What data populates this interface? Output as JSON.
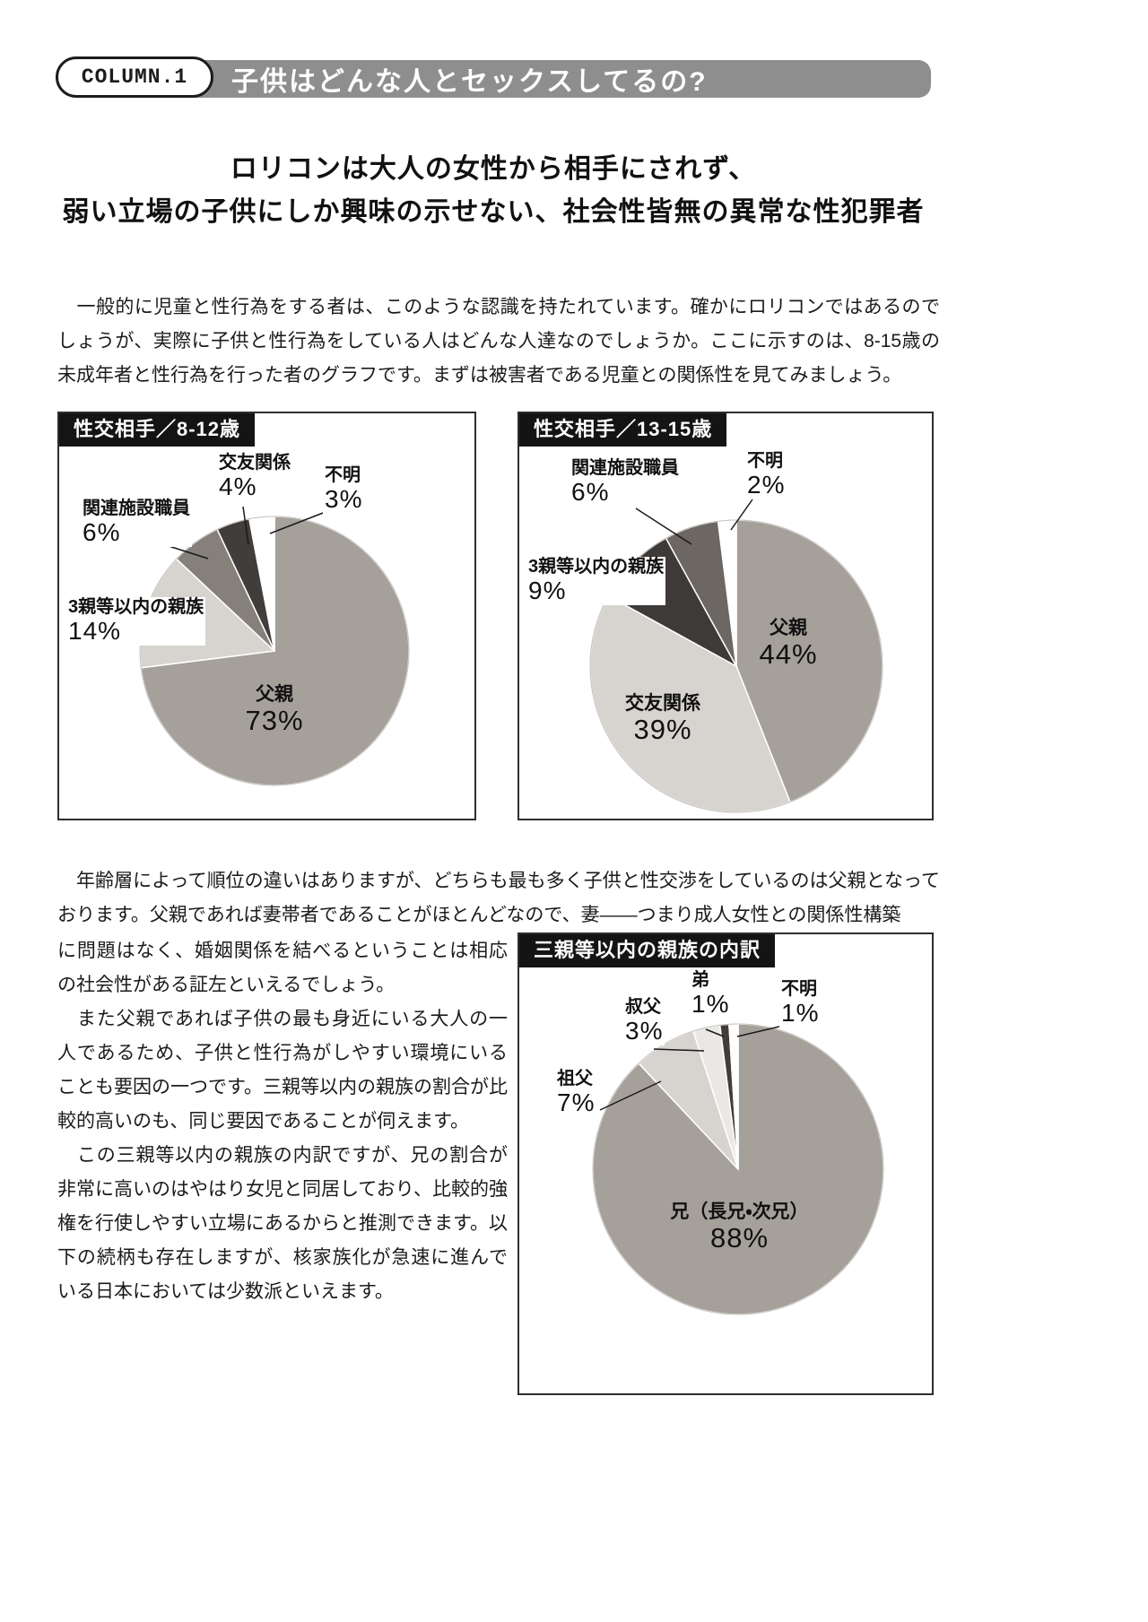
{
  "page": {
    "column_tag": "COLUMN.1",
    "title": "子供はどんな人とセックスしてるの?",
    "lead": {
      "line1": "ロリコンは大人の女性から相手にされず、",
      "line2": "弱い立場の子供にしか興味の示せない、社会性皆無の異常な性犯罪者"
    },
    "paragraphs": {
      "intro": "　一般的に児童と性行為をする者は、このような認識を持たれています。確かにロリコンではあるのでしょうが、実際に子供と性行為をしている人はどんな人達なのでしょうか。ここに示すのは、8-15歳の未成年者と性行為を行った者のグラフです。まずは被害者である児童との関係性を見てみましょう。",
      "analysis_full": "　年齢層によって順位の違いはありますが、どちらも最も多く子供と性交渉をしているのは父親となっております。父親であれば妻帯者であることがほとんどなので、妻——つまり成人女性との関係性構築",
      "analysis_left1": "に問題はなく、婚姻関係を結べるということは相応の社会性がある証左といえるでしょう。",
      "analysis_left2": "　また父親であれば子供の最も身近にいる大人の一人であるため、子供と性行為がしやすい環境にいることも要因の一つです。三親等以内の親族の割合が比較的高いのも、同じ要因であることが伺えます。",
      "analysis_left3": "　この三親等以内の親族の内訳ですが、兄の割合が非常に高いのはやはり女児と同居しており、比較的強権を行使しやすい立場にあるからと推測できます。以下の続柄も存在しますが、核家族化が急速に進んでいる日本においては少数派といえます。"
    }
  },
  "colors": {
    "title_bar": "#8e8e8e",
    "chart_header": "#141414",
    "pie_main": "#a5a09a",
    "pie_light": "#d7d4d0",
    "pie_mid": "#86807b",
    "pie_dark": "#3e3a37",
    "pie_white": "#ffffff"
  },
  "chart_data": [
    {
      "type": "pie",
      "title": "性交相手／8-12歳",
      "slices": [
        {
          "label": "父親",
          "value": 73,
          "display": "73%",
          "color": "#a5a09a"
        },
        {
          "label": "3親等以内の親族",
          "value": 14,
          "display": "14%",
          "color": "#d7d4d0"
        },
        {
          "label": "関連施設職員",
          "value": 6,
          "display": "6%",
          "color": "#86807b"
        },
        {
          "label": "交友関係",
          "value": 4,
          "display": "4%",
          "color": "#413d3a"
        },
        {
          "label": "不明",
          "value": 3,
          "display": "3%",
          "color": "#ffffff"
        }
      ]
    },
    {
      "type": "pie",
      "title": "性交相手／13-15歳",
      "slices": [
        {
          "label": "父親",
          "value": 44,
          "display": "44%",
          "color": "#a5a09a"
        },
        {
          "label": "交友関係",
          "value": 39,
          "display": "39%",
          "color": "#d7d4d0"
        },
        {
          "label": "3親等以内の親族",
          "value": 9,
          "display": "9%",
          "color": "#3e3a37"
        },
        {
          "label": "関連施設職員",
          "value": 6,
          "display": "6%",
          "color": "#6d6763"
        },
        {
          "label": "不明",
          "value": 2,
          "display": "2%",
          "color": "#ffffff"
        }
      ]
    },
    {
      "type": "pie",
      "title": "三親等以内の親族の内訳",
      "slices": [
        {
          "label": "兄（長兄・次兄）",
          "value": 88,
          "display": "88%",
          "color": "#a5a09a"
        },
        {
          "label": "祖父",
          "value": 7,
          "display": "7%",
          "color": "#d7d4d0"
        },
        {
          "label": "叔父",
          "value": 3,
          "display": "3%",
          "color": "#eae8e5"
        },
        {
          "label": "弟",
          "value": 1,
          "display": "1%",
          "color": "#413d3a"
        },
        {
          "label": "不明",
          "value": 1,
          "display": "1%",
          "color": "#ffffff"
        }
      ]
    }
  ]
}
